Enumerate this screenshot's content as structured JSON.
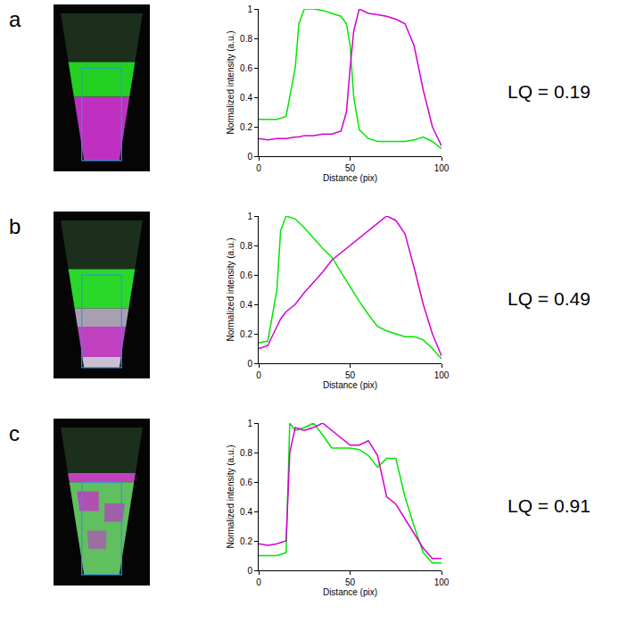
{
  "chart_data": [
    {
      "panel": "a",
      "type": "line",
      "annotation": "LQ = 0.19",
      "x_label": "Distance (pix)",
      "y_label": "Normalized intensity (a.u.)",
      "x": [
        0,
        5,
        10,
        15,
        20,
        22,
        25,
        30,
        35,
        40,
        45,
        48,
        50,
        52,
        55,
        60,
        65,
        70,
        75,
        80,
        85,
        90,
        95,
        100
      ],
      "series": [
        {
          "color": "#00e600",
          "values": [
            0.25,
            0.25,
            0.25,
            0.27,
            0.6,
            0.9,
            1.0,
            1.0,
            0.99,
            0.97,
            0.95,
            0.9,
            0.75,
            0.4,
            0.18,
            0.12,
            0.1,
            0.1,
            0.1,
            0.1,
            0.11,
            0.13,
            0.1,
            0.05
          ]
        },
        {
          "color": "#d400d4",
          "values": [
            0.12,
            0.11,
            0.12,
            0.12,
            0.13,
            0.13,
            0.14,
            0.14,
            0.15,
            0.15,
            0.17,
            0.3,
            0.6,
            0.85,
            1.0,
            0.97,
            0.96,
            0.95,
            0.93,
            0.9,
            0.75,
            0.45,
            0.2,
            0.07
          ]
        }
      ],
      "xlim": [
        0,
        100
      ],
      "xticks": [
        0,
        50,
        100
      ],
      "ylim": [
        0,
        1
      ],
      "yticks": [
        0,
        0.2,
        0.4,
        0.6,
        0.8,
        1
      ],
      "grid": false
    },
    {
      "panel": "b",
      "type": "line",
      "annotation": "LQ = 0.49",
      "x_label": "Distance (pix)",
      "y_label": "Normalized intensity (a.u.)",
      "x": [
        0,
        5,
        10,
        12,
        15,
        20,
        25,
        30,
        35,
        40,
        45,
        50,
        55,
        60,
        65,
        70,
        75,
        80,
        85,
        90,
        95,
        100
      ],
      "series": [
        {
          "color": "#00e600",
          "values": [
            0.14,
            0.15,
            0.5,
            0.9,
            1.0,
            0.98,
            0.92,
            0.85,
            0.78,
            0.72,
            0.62,
            0.52,
            0.42,
            0.33,
            0.25,
            0.22,
            0.2,
            0.18,
            0.18,
            0.16,
            0.1,
            0.03
          ]
        },
        {
          "color": "#d400d4",
          "values": [
            0.1,
            0.12,
            0.25,
            0.3,
            0.35,
            0.4,
            0.48,
            0.55,
            0.62,
            0.7,
            0.75,
            0.8,
            0.85,
            0.9,
            0.95,
            1.0,
            0.97,
            0.88,
            0.65,
            0.4,
            0.2,
            0.05
          ]
        }
      ],
      "xlim": [
        0,
        100
      ],
      "xticks": [
        0,
        50,
        100
      ],
      "ylim": [
        0,
        1
      ],
      "yticks": [
        0,
        0.2,
        0.4,
        0.6,
        0.8,
        1
      ],
      "grid": false
    },
    {
      "panel": "c",
      "type": "line",
      "annotation": "LQ = 0.91",
      "x_label": "Distance (pix)",
      "y_label": "Normalized intensity (a.u.)",
      "x": [
        0,
        5,
        10,
        15,
        17,
        20,
        25,
        30,
        35,
        40,
        45,
        50,
        55,
        60,
        65,
        70,
        75,
        80,
        85,
        90,
        95,
        100
      ],
      "series": [
        {
          "color": "#00e600",
          "values": [
            0.1,
            0.1,
            0.1,
            0.12,
            1.0,
            0.95,
            0.97,
            1.0,
            0.92,
            0.83,
            0.83,
            0.83,
            0.82,
            0.78,
            0.7,
            0.76,
            0.76,
            0.5,
            0.3,
            0.12,
            0.05,
            0.05
          ]
        },
        {
          "color": "#d400d4",
          "values": [
            0.18,
            0.17,
            0.18,
            0.2,
            0.8,
            0.97,
            0.95,
            0.97,
            1.0,
            0.95,
            0.9,
            0.85,
            0.85,
            0.88,
            0.78,
            0.5,
            0.45,
            0.35,
            0.25,
            0.15,
            0.08,
            0.08
          ]
        }
      ],
      "xlim": [
        0,
        100
      ],
      "xticks": [
        0,
        50,
        100
      ],
      "ylim": [
        0,
        1
      ],
      "yticks": [
        0,
        0.2,
        0.4,
        0.6,
        0.8,
        1
      ],
      "grid": false
    }
  ]
}
